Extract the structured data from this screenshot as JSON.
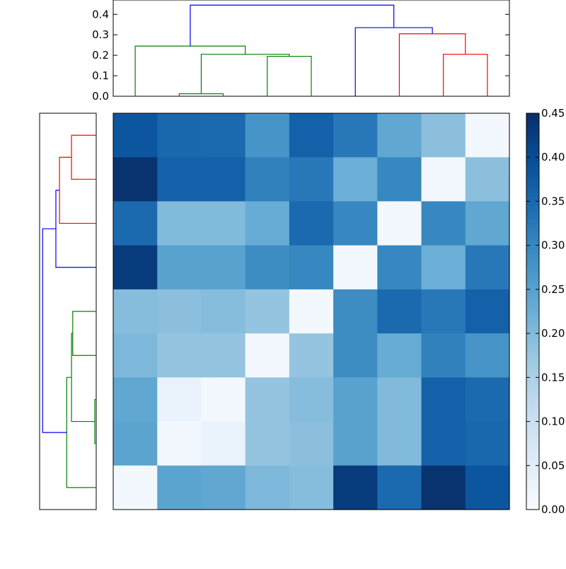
{
  "chart_data": {
    "type": "heatmap",
    "description_free": true,
    "matrix": [
      [
        0.385,
        0.355,
        0.35,
        0.275,
        0.365,
        0.325,
        0.24,
        0.19,
        0.01
      ],
      [
        0.445,
        0.365,
        0.365,
        0.31,
        0.325,
        0.225,
        0.3,
        0.01,
        0.19
      ],
      [
        0.35,
        0.2,
        0.2,
        0.23,
        0.35,
        0.3,
        0.01,
        0.3,
        0.24
      ],
      [
        0.43,
        0.25,
        0.25,
        0.29,
        0.3,
        0.01,
        0.3,
        0.225,
        0.325
      ],
      [
        0.195,
        0.19,
        0.195,
        0.18,
        0.01,
        0.29,
        0.35,
        0.325,
        0.365
      ],
      [
        0.205,
        0.18,
        0.18,
        0.01,
        0.18,
        0.29,
        0.23,
        0.31,
        0.275
      ],
      [
        0.24,
        0.03,
        0.01,
        0.18,
        0.195,
        0.25,
        0.2,
        0.365,
        0.35
      ],
      [
        0.245,
        0.01,
        0.03,
        0.18,
        0.19,
        0.25,
        0.2,
        0.365,
        0.355
      ],
      [
        0.01,
        0.245,
        0.24,
        0.205,
        0.195,
        0.43,
        0.35,
        0.445,
        0.385
      ]
    ],
    "colormap": "Blues",
    "vmin": 0.0,
    "vmax": 0.45,
    "colorbar_ticks": [
      "0.00",
      "0.05",
      "0.10",
      "0.15",
      "0.20",
      "0.25",
      "0.30",
      "0.35",
      "0.40",
      "0.45"
    ],
    "top_dendrogram": {
      "axis_ticks": [
        "0.0",
        "0.1",
        "0.2",
        "0.3",
        "0.4"
      ],
      "ylim": [
        0,
        0.47
      ],
      "links": [
        {
          "x": [
            1.5,
            1.5,
            2.5,
            2.5
          ],
          "y": [
            0.0,
            0.012,
            0.012,
            0.0
          ],
          "color": "#008000"
        },
        {
          "x": [
            3.5,
            3.5,
            4.5,
            4.5
          ],
          "y": [
            0.0,
            0.195,
            0.195,
            0.0
          ],
          "color": "#008000"
        },
        {
          "x": [
            2.0,
            2.0,
            4.0,
            4.0
          ],
          "y": [
            0.012,
            0.205,
            0.205,
            0.195
          ],
          "color": "#008000"
        },
        {
          "x": [
            0.5,
            0.5,
            3.0,
            3.0
          ],
          "y": [
            0.0,
            0.245,
            0.245,
            0.205
          ],
          "color": "#008000"
        },
        {
          "x": [
            7.5,
            7.5,
            8.5,
            8.5
          ],
          "y": [
            0.0,
            0.205,
            0.205,
            0.0
          ],
          "color": "#ff0000"
        },
        {
          "x": [
            6.5,
            6.5,
            8.0,
            8.0
          ],
          "y": [
            0.0,
            0.305,
            0.305,
            0.205
          ],
          "color": "#ff0000"
        },
        {
          "x": [
            5.5,
            5.5,
            7.25,
            7.25
          ],
          "y": [
            0.0,
            0.335,
            0.335,
            0.305
          ],
          "color": "#0000ff"
        },
        {
          "x": [
            1.75,
            1.75,
            6.375,
            6.375
          ],
          "y": [
            0.245,
            0.445,
            0.445,
            0.335
          ],
          "color": "#0000ff"
        }
      ]
    },
    "left_dendrogram": {
      "dmax": 0.47,
      "links": [
        {
          "y": [
            6.5,
            6.5,
            7.5,
            7.5
          ],
          "d": [
            0.0,
            0.012,
            0.012,
            0.0
          ],
          "color": "#008000"
        },
        {
          "y": [
            4.5,
            4.5,
            5.5,
            5.5
          ],
          "d": [
            0.0,
            0.195,
            0.195,
            0.0
          ],
          "color": "#008000"
        },
        {
          "y": [
            7.0,
            7.0,
            5.0,
            5.0
          ],
          "d": [
            0.012,
            0.205,
            0.205,
            0.195
          ],
          "color": "#008000"
        },
        {
          "y": [
            8.5,
            8.5,
            6.0,
            6.0
          ],
          "d": [
            0.0,
            0.245,
            0.245,
            0.205
          ],
          "color": "#008000"
        },
        {
          "y": [
            0.5,
            0.5,
            1.5,
            1.5
          ],
          "d": [
            0.0,
            0.205,
            0.205,
            0.0
          ],
          "color": "#ff0000"
        },
        {
          "y": [
            2.5,
            2.5,
            1.0,
            1.0
          ],
          "d": [
            0.0,
            0.305,
            0.305,
            0.205
          ],
          "color": "#ff0000"
        },
        {
          "y": [
            3.5,
            3.5,
            1.75,
            1.75
          ],
          "d": [
            0.0,
            0.335,
            0.335,
            0.305
          ],
          "color": "#0000ff"
        },
        {
          "y": [
            7.25,
            7.25,
            2.625,
            2.625
          ],
          "d": [
            0.245,
            0.445,
            0.445,
            0.335
          ],
          "color": "#0000ff"
        }
      ]
    }
  }
}
